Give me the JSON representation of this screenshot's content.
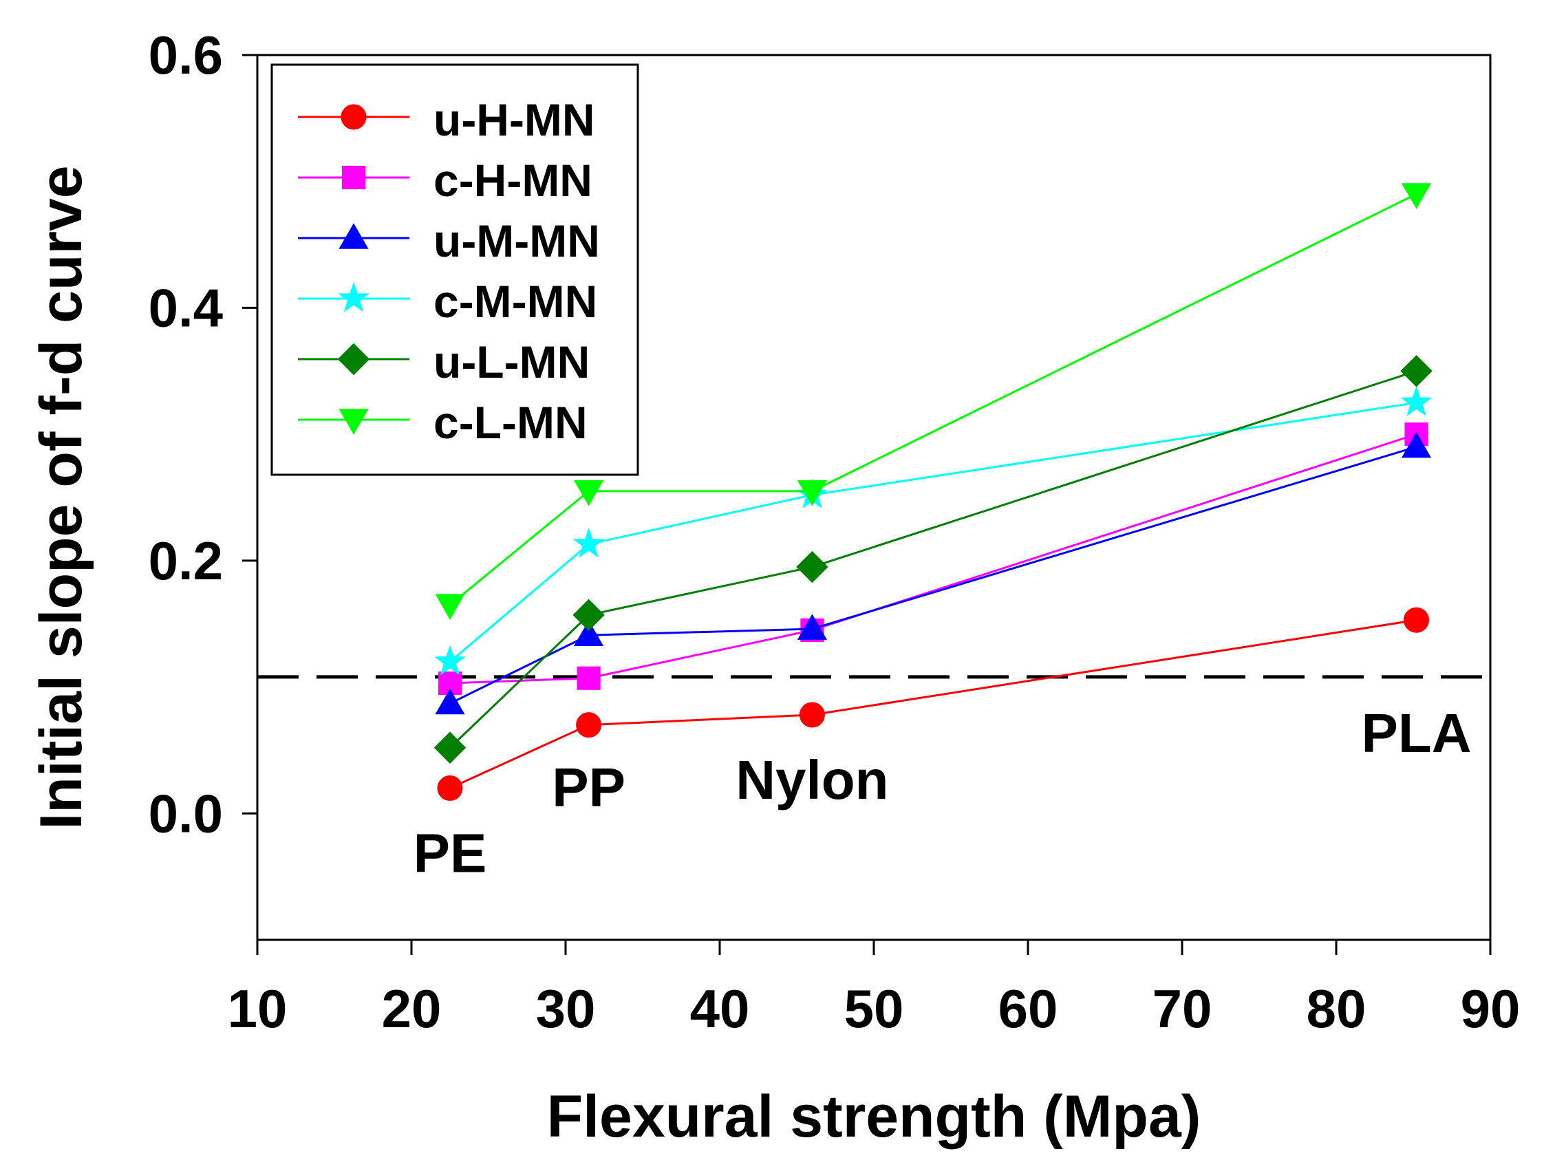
{
  "chart_data": {
    "type": "line",
    "xlabel": "Flexural strength (Mpa)",
    "ylabel": "Initial slope of f-d curve",
    "xlim": [
      10,
      90
    ],
    "ylim": [
      -0.1,
      0.6
    ],
    "x_ticks": [
      10,
      20,
      30,
      40,
      50,
      60,
      70,
      80,
      90
    ],
    "x_tick_labels": [
      "10",
      "20",
      "30",
      "40",
      "50",
      "60",
      "70",
      "80",
      "90"
    ],
    "y_ticks": [
      0.0,
      0.2,
      0.4,
      0.6
    ],
    "y_tick_labels": [
      "0.0",
      "0.2",
      "0.4",
      "0.6"
    ],
    "x": [
      22.5,
      31.5,
      46,
      85.2
    ],
    "legend_position": "top-left",
    "series": [
      {
        "name": "u-H-MN",
        "color": "#ff0000",
        "marker": "circle",
        "values": [
          0.02,
          0.07,
          0.078,
          0.153
        ]
      },
      {
        "name": "c-H-MN",
        "color": "#ff00ff",
        "marker": "square",
        "values": [
          0.103,
          0.107,
          0.145,
          0.3
        ]
      },
      {
        "name": "u-M-MN",
        "color": "#0000ff",
        "marker": "triangle-up",
        "values": [
          0.087,
          0.141,
          0.146,
          0.29
        ]
      },
      {
        "name": "c-M-MN",
        "color": "#00ffff",
        "marker": "star",
        "values": [
          0.12,
          0.213,
          0.252,
          0.325
        ]
      },
      {
        "name": "u-L-MN",
        "color": "#007f00",
        "marker": "diamond",
        "values": [
          0.052,
          0.157,
          0.195,
          0.35
        ]
      },
      {
        "name": "c-L-MN",
        "color": "#00ff00",
        "marker": "triangle-down",
        "values": [
          0.165,
          0.255,
          0.255,
          0.49
        ]
      }
    ],
    "reference_line": {
      "y": 0.108,
      "style": "dashed",
      "color": "#000000"
    },
    "annotations": [
      {
        "text": "PE",
        "x": 22.5,
        "y": -0.03
      },
      {
        "text": "PP",
        "x": 31.5,
        "y": 0.022
      },
      {
        "text": "Nylon",
        "x": 46,
        "y": 0.028
      },
      {
        "text": "PLA",
        "x": 85.2,
        "y": 0.065
      }
    ]
  }
}
